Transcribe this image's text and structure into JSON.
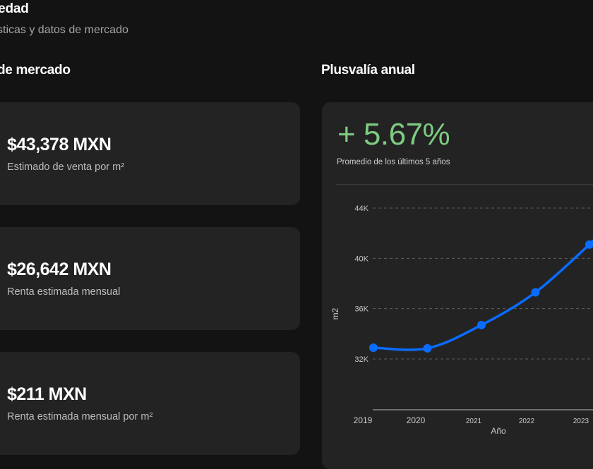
{
  "header": {
    "title": "iedad",
    "subtitle": "sticas y datos de mercado"
  },
  "market": {
    "title": "de mercado",
    "cards": [
      {
        "value": "$43,378 MXN",
        "label": "Estimado de venta por m²"
      },
      {
        "value": "$26,642 MXN",
        "label": "Renta estimada mensual"
      },
      {
        "value": "$211 MXN",
        "label": "Renta estimada mensual por m²"
      }
    ]
  },
  "plusvalia": {
    "title": "Plusvalía anual",
    "value": "+ 5.67%",
    "note": "Promedio de los últimos 5 años"
  },
  "colors": {
    "background": "#131313",
    "card": "#232323",
    "accent_green": "#7ecb82",
    "line_blue": "#0a6cff"
  },
  "chart_data": {
    "type": "line",
    "x": [
      "2019",
      "2020",
      "2021",
      "2022",
      "2023"
    ],
    "y": [
      32900,
      32850,
      34700,
      37300,
      41100
    ],
    "ylim": [
      30000,
      46000
    ],
    "yticks": [
      32000,
      36000,
      40000,
      44000
    ],
    "ytick_labels": [
      "32K",
      "36K",
      "40K",
      "44K"
    ],
    "xlabel": "Año",
    "ylabel": "m2",
    "grid": true,
    "grid_style": "dashed horizontal"
  }
}
